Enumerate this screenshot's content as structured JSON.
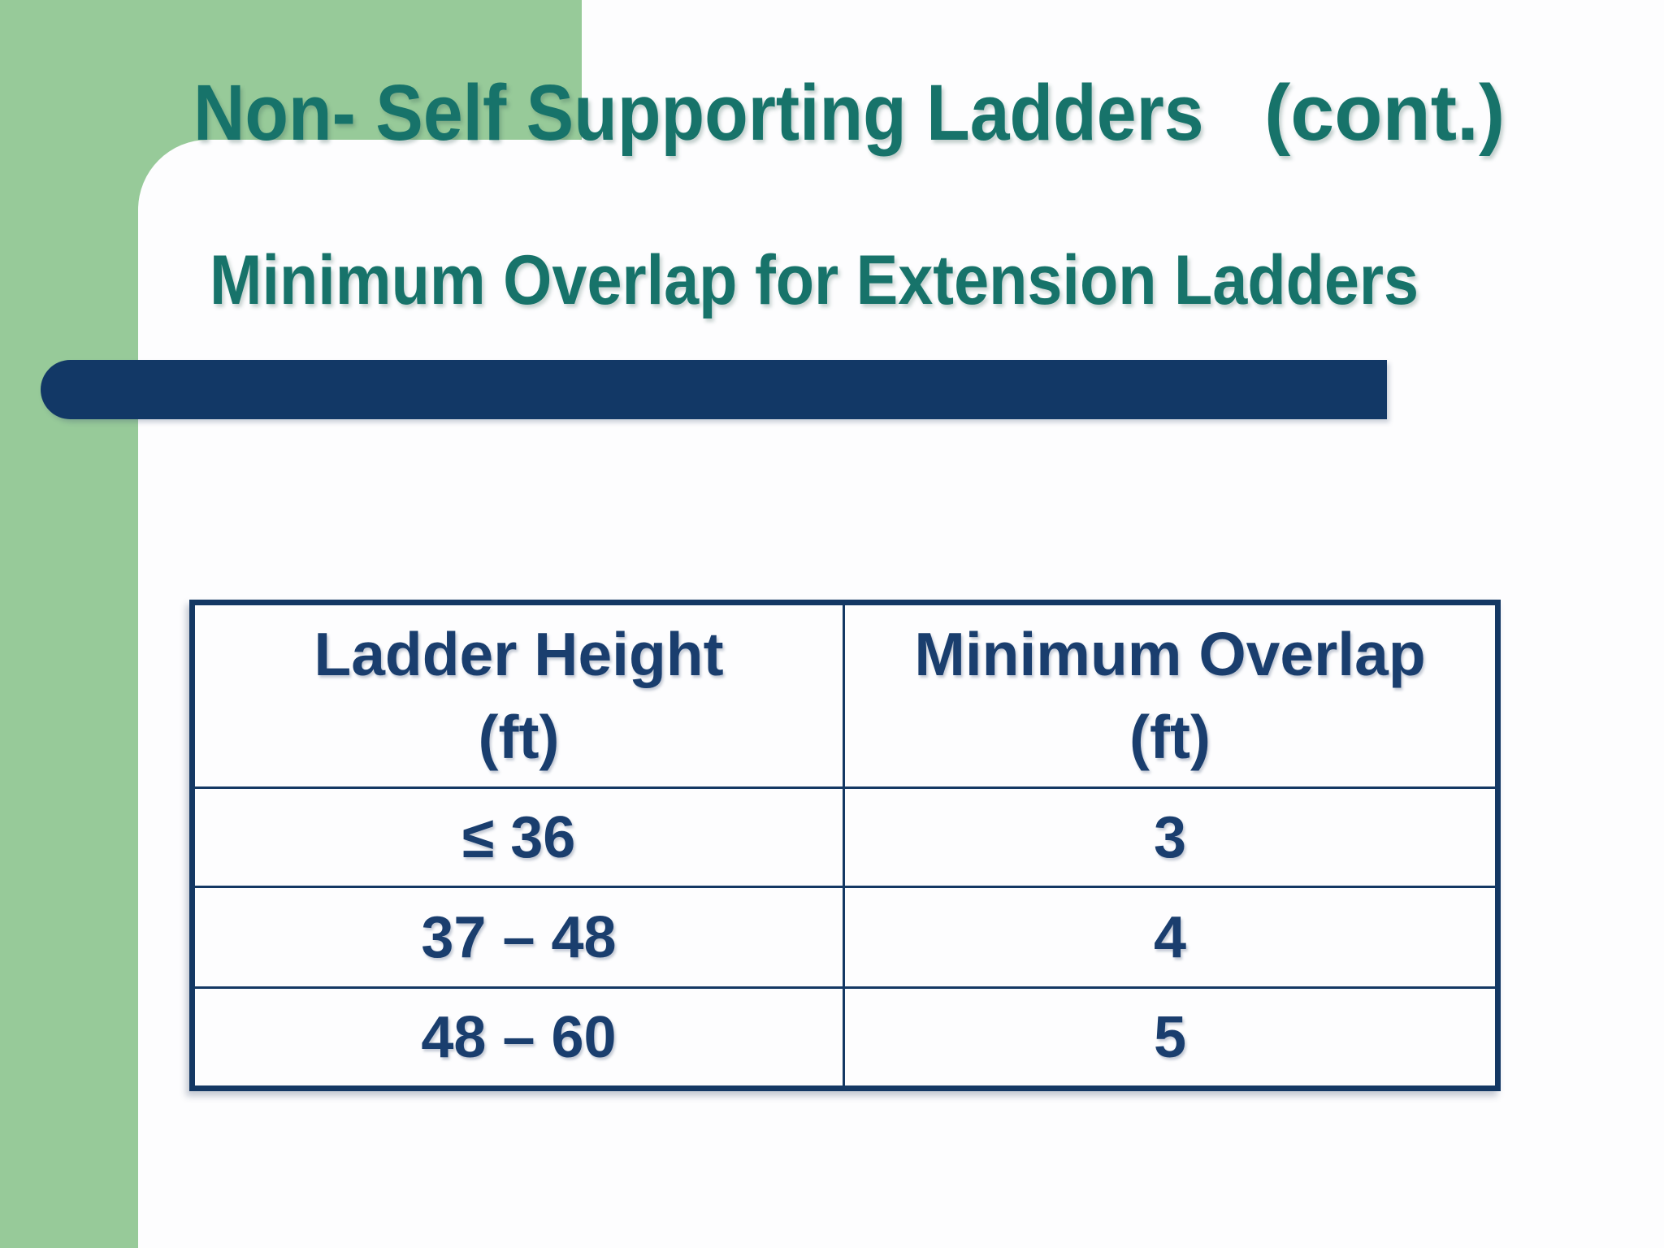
{
  "title": {
    "main": "Non- Self Supporting Ladders",
    "cont": "(cont.)"
  },
  "subtitle": "Minimum Overlap for Extension Ladders",
  "table": {
    "headers": [
      {
        "line1": "Ladder Height",
        "line2": "(ft)"
      },
      {
        "line1": "Minimum Overlap",
        "line2": "(ft)"
      }
    ],
    "rows": [
      {
        "height": "≤ 36",
        "overlap": "3"
      },
      {
        "height": "37 – 48",
        "overlap": "4"
      },
      {
        "height": "48 – 60",
        "overlap": "5"
      }
    ]
  },
  "colors": {
    "background_green": "#97CA99",
    "card_white": "#FDFDFE",
    "title_teal": "#17736A",
    "bar_navy": "#123866",
    "table_border_navy": "#143864",
    "table_text_navy": "#1A3E6E"
  }
}
